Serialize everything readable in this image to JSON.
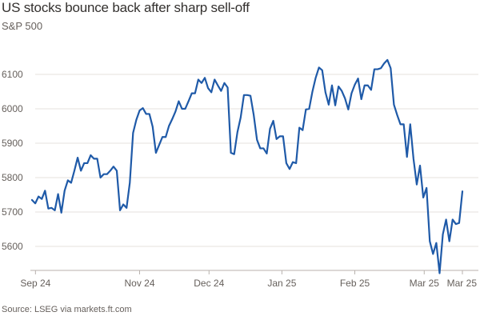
{
  "header": {
    "title": "US stocks bounce back after sharp sell-off",
    "subtitle": "S&P 500"
  },
  "footer": {
    "source": "Source: LSEG via markets.ft.com"
  },
  "colors": {
    "line": "#1f5aa8",
    "grid": "#e5e0dc",
    "text": "#66605c"
  },
  "chart_data": {
    "type": "line",
    "title": "US stocks bounce back after sharp sell-off",
    "subtitle": "S&P 500",
    "xlabel": "",
    "ylabel": "",
    "ylim": [
      5530,
      6150
    ],
    "xlim": [
      0,
      124
    ],
    "y_ticks": [
      6100,
      6000,
      5900,
      5800,
      5700,
      5600
    ],
    "x_ticks": [
      {
        "label": "Sep 24",
        "x": 1
      },
      {
        "label": "Nov 24",
        "x": 31
      },
      {
        "label": "Dec 24",
        "x": 51
      },
      {
        "label": "Jan 25",
        "x": 72
      },
      {
        "label": "Feb 25",
        "x": 93
      },
      {
        "label": "Mar 25",
        "x": 113
      },
      {
        "label": "Mar 25",
        "x": 124
      }
    ],
    "series": [
      {
        "name": "S&P 500",
        "values": [
          5735,
          5725,
          5745,
          5738,
          5762,
          5710,
          5712,
          5705,
          5752,
          5698,
          5762,
          5792,
          5785,
          5820,
          5858,
          5820,
          5842,
          5842,
          5865,
          5855,
          5855,
          5800,
          5810,
          5810,
          5820,
          5832,
          5820,
          5705,
          5722,
          5712,
          5785,
          5930,
          5968,
          5995,
          6002,
          5985,
          5985,
          5948,
          5872,
          5895,
          5918,
          5918,
          5950,
          5970,
          5992,
          6022,
          6000,
          6000,
          6022,
          6045,
          6045,
          6085,
          6075,
          6090,
          6060,
          6048,
          6085,
          6068,
          6052,
          6075,
          6062,
          5872,
          5868,
          5932,
          5975,
          6040,
          6040,
          6038,
          5982,
          5910,
          5885,
          5885,
          5870,
          5942,
          5965,
          5912,
          5920,
          5920,
          5842,
          5825,
          5845,
          5842,
          5945,
          5938,
          5998,
          6000,
          6050,
          6090,
          6120,
          6112,
          6048,
          6012,
          6068,
          6010,
          6065,
          6052,
          6030,
          5998,
          6045,
          6070,
          6088,
          6028,
          6068,
          6068,
          6055,
          6115,
          6115,
          6118,
          6132,
          6142,
          6118,
          6012,
          5982,
          5955,
          5955,
          5860,
          5955,
          5855,
          5780,
          5835,
          5742,
          5770,
          5615,
          5578,
          5610,
          5522,
          5635,
          5678,
          5615,
          5678,
          5665,
          5668,
          5760
        ]
      }
    ]
  }
}
